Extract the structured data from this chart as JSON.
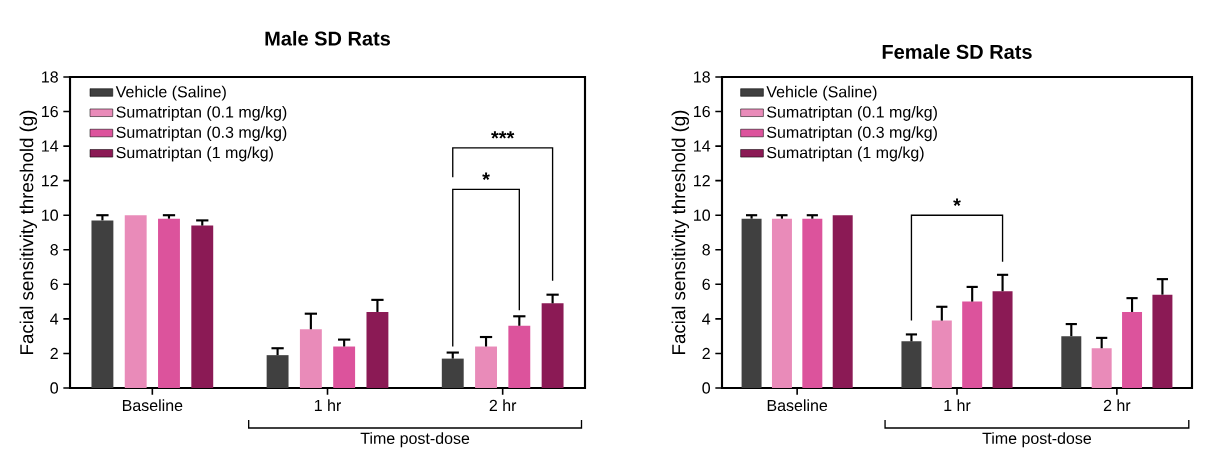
{
  "chart_data": [
    {
      "type": "bar",
      "title": "Male SD Rats",
      "xlabel": "Time post-dose",
      "ylabel": "Facial sensitivity threshold (g)",
      "categories": [
        "Baseline",
        "1 hr",
        "2 hr"
      ],
      "series": [
        {
          "name": "Vehicle (Saline)",
          "color": "#404040",
          "values": [
            9.7,
            1.9,
            1.7
          ],
          "errors": [
            [
              9.7,
              10.0
            ],
            [
              1.9,
              2.3
            ],
            [
              1.7,
              2.05
            ]
          ]
        },
        {
          "name": "Sumatriptan (0.1 mg/kg)",
          "color": "#e98bb9",
          "values": [
            10.0,
            3.4,
            2.4
          ],
          "errors": [
            null,
            [
              3.4,
              4.3
            ],
            [
              2.4,
              2.95
            ]
          ]
        },
        {
          "name": "Sumatriptan (0.3 mg/kg)",
          "color": "#dc539c",
          "values": [
            9.8,
            2.4,
            3.6
          ],
          "errors": [
            [
              9.8,
              10.0
            ],
            [
              2.4,
              2.8
            ],
            [
              3.6,
              4.15
            ]
          ]
        },
        {
          "name": "Sumatriptan (1 mg/kg)",
          "color": "#8b1a55",
          "values": [
            9.4,
            4.4,
            4.9
          ],
          "errors": [
            [
              9.4,
              9.7
            ],
            [
              4.4,
              5.1
            ],
            [
              4.9,
              5.4
            ]
          ]
        }
      ],
      "ylim": [
        0,
        18
      ],
      "yticks": [
        0,
        2,
        4,
        6,
        8,
        10,
        12,
        14,
        16,
        18
      ],
      "legend": "top left",
      "annotations": [
        "*",
        "***"
      ]
    },
    {
      "type": "bar",
      "title": "Female SD Rats",
      "xlabel": "Time post-dose",
      "ylabel": "Facial sensitivity threshold (g)",
      "categories": [
        "Baseline",
        "1 hr",
        "2 hr"
      ],
      "series": [
        {
          "name": "Vehicle (Saline)",
          "color": "#404040",
          "values": [
            9.8,
            2.7,
            3.0
          ],
          "errors": [
            [
              9.8,
              10.0
            ],
            [
              2.7,
              3.1
            ],
            [
              3.0,
              3.7
            ]
          ]
        },
        {
          "name": "Sumatriptan (0.1 mg/kg)",
          "color": "#e98bb9",
          "values": [
            9.8,
            3.9,
            2.3
          ],
          "errors": [
            [
              9.8,
              10.0
            ],
            [
              3.9,
              4.7
            ],
            [
              2.3,
              2.9
            ]
          ]
        },
        {
          "name": "Sumatriptan (0.3 mg/kg)",
          "color": "#dc539c",
          "values": [
            9.8,
            5.0,
            4.4
          ],
          "errors": [
            [
              9.8,
              10.0
            ],
            [
              5.0,
              5.85
            ],
            [
              4.4,
              5.2
            ]
          ]
        },
        {
          "name": "Sumatriptan (1 mg/kg)",
          "color": "#8b1a55",
          "values": [
            10.0,
            5.6,
            5.4
          ],
          "errors": [
            null,
            [
              5.6,
              6.55
            ],
            [
              5.4,
              6.3
            ]
          ]
        }
      ],
      "ylim": [
        0,
        18
      ],
      "yticks": [
        0,
        2,
        4,
        6,
        8,
        10,
        12,
        14,
        16,
        18
      ],
      "legend": "top left",
      "annotations": [
        "*"
      ]
    }
  ]
}
